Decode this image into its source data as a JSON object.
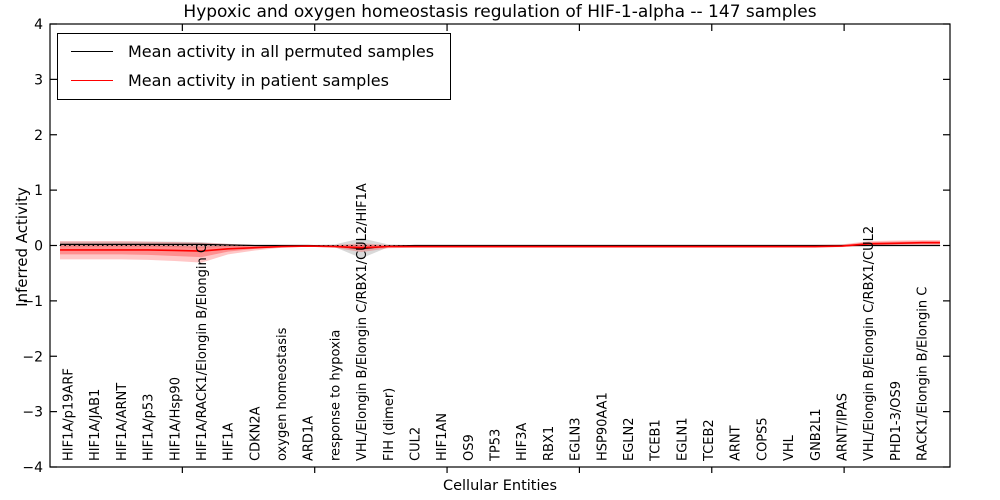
{
  "chart_data": {
    "type": "line",
    "title": "Hypoxic and oxygen homeostasis regulation of HIF-1-alpha -- 147 samples",
    "xlabel": "Cellular Entities",
    "ylabel": "Inferred Activity",
    "ylim": [
      -4,
      4
    ],
    "xlim": [
      0,
      34
    ],
    "xticks": [
      5,
      10,
      15,
      20,
      25,
      30
    ],
    "yticks": [
      {
        "value": 4,
        "label": "4"
      },
      {
        "value": 3,
        "label": "3"
      },
      {
        "value": 2,
        "label": "2"
      },
      {
        "value": 1,
        "label": "1"
      },
      {
        "value": 0,
        "label": "0"
      },
      {
        "value": -1,
        "label": "−1"
      },
      {
        "value": -2,
        "label": "−2"
      },
      {
        "value": -3,
        "label": "−3"
      },
      {
        "value": -4,
        "label": "−4"
      }
    ],
    "zero_line": {
      "y": 0,
      "style": "dotted",
      "color": "#000000"
    },
    "legend_position": "upper left",
    "categories": [
      "HIF1A/p19ARF",
      "HIF1A/JAB1",
      "HIF1A/ARNT",
      "HIF1A/p53",
      "HIF1A/Hsp90",
      "HIF1A/RACK1/Elongin B/Elongin C",
      "HIF1A",
      "CDKN2A",
      "oxygen homeostasis",
      "ARD1A",
      "response to hypoxia",
      "VHL/Elongin B/Elongin C/RBX1/CUL2/HIF1A",
      "FIH (dimer)",
      "CUL2",
      "HIF1AN",
      "OS9",
      "TP53",
      "HIF3A",
      "RBX1",
      "EGLN3",
      "HSP90AA1",
      "EGLN2",
      "TCEB1",
      "EGLN1",
      "TCEB2",
      "ARNT",
      "COPS5",
      "VHL",
      "GNB2L1",
      "ARNT/IPAS",
      "VHL/Elongin B/Elongin C/RBX1/CUL2",
      "PHD1-3/OS9",
      "RACK1/Elongin B/Elongin C"
    ],
    "series": [
      {
        "name": "Mean activity in all permuted samples",
        "color": "#000000",
        "values": [
          0.02,
          0.02,
          0.02,
          0.02,
          0.02,
          0.02,
          0.01,
          0.0,
          0.0,
          0.0,
          -0.01,
          -0.06,
          -0.01,
          0.0,
          0.0,
          0.0,
          0.0,
          0.0,
          0.0,
          0.0,
          0.0,
          0.0,
          0.0,
          0.0,
          0.0,
          0.0,
          0.0,
          0.0,
          0.0,
          0.0,
          0.0,
          0.0,
          0.0
        ]
      },
      {
        "name": "Mean activity in patient samples",
        "color": "#ff0000",
        "values": [
          -0.08,
          -0.08,
          -0.08,
          -0.08,
          -0.09,
          -0.1,
          -0.06,
          -0.04,
          -0.02,
          -0.01,
          -0.02,
          -0.04,
          -0.02,
          -0.02,
          -0.02,
          -0.02,
          -0.02,
          -0.02,
          -0.02,
          -0.02,
          -0.02,
          -0.02,
          -0.02,
          -0.02,
          -0.02,
          -0.02,
          -0.02,
          -0.02,
          -0.02,
          -0.01,
          0.03,
          0.04,
          0.05
        ]
      }
    ],
    "bands": [
      {
        "name": "permuted-spread",
        "color": "#9a9a9a",
        "opacity": 0.38,
        "upper": [
          0.07,
          0.07,
          0.07,
          0.07,
          0.07,
          0.06,
          0.03,
          0.01,
          0.01,
          0.01,
          0.02,
          0.13,
          0.02,
          0.01,
          0.01,
          0.01,
          0.01,
          0.01,
          0.01,
          0.01,
          0.01,
          0.01,
          0.01,
          0.01,
          0.01,
          0.01,
          0.01,
          0.01,
          0.01,
          0.01,
          0.01,
          0.01,
          0.01
        ],
        "lower": [
          -0.02,
          -0.02,
          -0.02,
          -0.02,
          -0.03,
          -0.04,
          -0.02,
          -0.01,
          -0.01,
          -0.01,
          -0.03,
          -0.23,
          -0.03,
          -0.01,
          -0.01,
          -0.01,
          -0.01,
          -0.01,
          -0.01,
          -0.01,
          -0.01,
          -0.01,
          -0.01,
          -0.01,
          -0.01,
          -0.01,
          -0.01,
          -0.01,
          -0.01,
          -0.01,
          -0.01,
          -0.01,
          -0.01
        ]
      },
      {
        "name": "patient-spread-outer",
        "color": "#ff0000",
        "opacity": 0.22,
        "upper": [
          0.08,
          0.08,
          0.08,
          0.07,
          0.06,
          0.05,
          0.03,
          0.01,
          0.0,
          0.0,
          0.01,
          0.04,
          0.01,
          0.01,
          0.01,
          0.01,
          0.01,
          0.01,
          0.01,
          0.01,
          0.01,
          0.01,
          0.01,
          0.01,
          0.01,
          0.01,
          0.01,
          0.01,
          0.01,
          0.02,
          0.08,
          0.09,
          0.1
        ],
        "lower": [
          -0.25,
          -0.25,
          -0.25,
          -0.26,
          -0.28,
          -0.31,
          -0.16,
          -0.09,
          -0.04,
          -0.02,
          -0.04,
          -0.12,
          -0.05,
          -0.04,
          -0.04,
          -0.04,
          -0.04,
          -0.04,
          -0.04,
          -0.04,
          -0.04,
          -0.04,
          -0.04,
          -0.04,
          -0.04,
          -0.04,
          -0.04,
          -0.04,
          -0.04,
          -0.03,
          -0.01,
          0.0,
          0.01
        ],
        "note": "147 samples"
      },
      {
        "name": "patient-spread-inner",
        "color": "#ff0000",
        "opacity": 0.28,
        "upper": [
          0.0,
          0.0,
          0.0,
          0.0,
          -0.01,
          -0.02,
          -0.01,
          0.0,
          -0.01,
          0.0,
          0.0,
          0.01,
          0.0,
          0.0,
          0.0,
          0.0,
          0.0,
          0.0,
          0.0,
          0.0,
          0.0,
          0.0,
          0.0,
          0.0,
          0.0,
          0.0,
          0.0,
          0.0,
          0.0,
          0.01,
          0.06,
          0.07,
          0.08
        ],
        "lower": [
          -0.16,
          -0.16,
          -0.16,
          -0.17,
          -0.19,
          -0.21,
          -0.11,
          -0.06,
          -0.03,
          -0.02,
          -0.03,
          -0.08,
          -0.03,
          -0.03,
          -0.03,
          -0.03,
          -0.03,
          -0.03,
          -0.03,
          -0.03,
          -0.03,
          -0.03,
          -0.03,
          -0.03,
          -0.03,
          -0.03,
          -0.03,
          -0.03,
          -0.03,
          -0.02,
          0.01,
          0.02,
          0.03
        ]
      }
    ]
  }
}
